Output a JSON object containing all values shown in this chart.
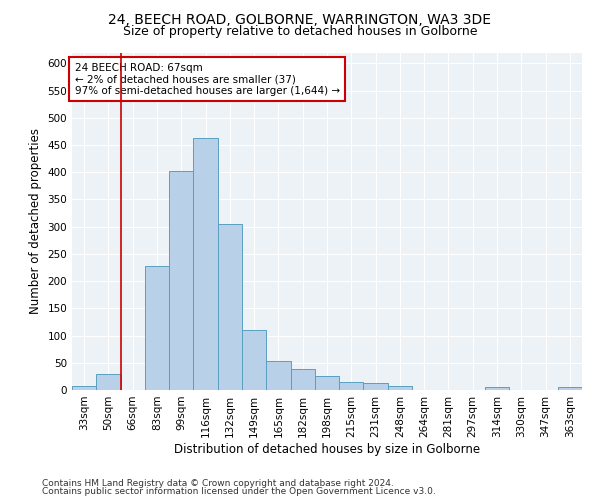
{
  "title1": "24, BEECH ROAD, GOLBORNE, WARRINGTON, WA3 3DE",
  "title2": "Size of property relative to detached houses in Golborne",
  "xlabel": "Distribution of detached houses by size in Golborne",
  "ylabel": "Number of detached properties",
  "categories": [
    "33sqm",
    "50sqm",
    "66sqm",
    "83sqm",
    "99sqm",
    "116sqm",
    "132sqm",
    "149sqm",
    "165sqm",
    "182sqm",
    "198sqm",
    "215sqm",
    "231sqm",
    "248sqm",
    "264sqm",
    "281sqm",
    "297sqm",
    "314sqm",
    "330sqm",
    "347sqm",
    "363sqm"
  ],
  "values": [
    7,
    30,
    0,
    228,
    403,
    463,
    305,
    110,
    53,
    39,
    26,
    14,
    12,
    7,
    0,
    0,
    0,
    5,
    0,
    0,
    5
  ],
  "bar_color": "#b8d0e8",
  "bar_edgecolor": "#5a9fc0",
  "vline_color": "#cc0000",
  "annotation_text": "24 BEECH ROAD: 67sqm\n← 2% of detached houses are smaller (37)\n97% of semi-detached houses are larger (1,644) →",
  "annotation_box_color": "#cc0000",
  "footer1": "Contains HM Land Registry data © Crown copyright and database right 2024.",
  "footer2": "Contains public sector information licensed under the Open Government Licence v3.0.",
  "ylim": [
    0,
    620
  ],
  "yticks": [
    0,
    50,
    100,
    150,
    200,
    250,
    300,
    350,
    400,
    450,
    500,
    550,
    600
  ],
  "plot_bg_color": "#edf2f7",
  "title1_fontsize": 10,
  "title2_fontsize": 9,
  "axis_label_fontsize": 8.5,
  "tick_fontsize": 7.5,
  "annotation_fontsize": 7.5,
  "footer_fontsize": 6.5,
  "vline_index": 2
}
